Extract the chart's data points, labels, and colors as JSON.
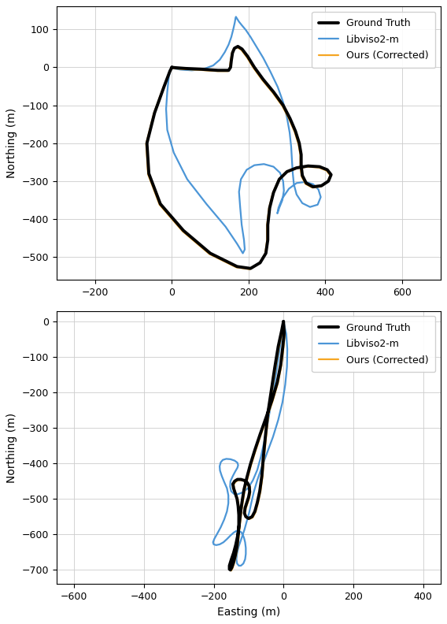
{
  "plot1": {
    "ylabel": "Northing (m)",
    "xlabel": "",
    "xlim": [
      -300,
      700
    ],
    "ylim": [
      -560,
      160
    ],
    "xticks": [
      -200,
      0,
      200,
      400,
      600
    ],
    "yticks": [
      -500,
      -400,
      -300,
      -200,
      -100,
      0,
      100
    ],
    "gt_color": "#000000",
    "libviso_color": "#4c96d7",
    "ours_color": "#f5a623",
    "gt_lw": 2.8,
    "libviso_lw": 1.6,
    "ours_lw": 1.6
  },
  "plot2": {
    "ylabel": "Northing (m)",
    "xlabel": "Easting (m)",
    "xlim": [
      -650,
      450
    ],
    "ylim": [
      -740,
      30
    ],
    "xticks": [
      -600,
      -400,
      -200,
      0,
      200,
      400
    ],
    "yticks": [
      -700,
      -600,
      -500,
      -400,
      -300,
      -200,
      -100,
      0
    ],
    "gt_color": "#000000",
    "libviso_color": "#4c96d7",
    "ours_color": "#f5a623",
    "gt_lw": 2.8,
    "libviso_lw": 1.6,
    "ours_lw": 1.6
  },
  "legend_labels": [
    "Ground Truth",
    "Libviso2-m",
    "Ours (Corrected)"
  ],
  "background_color": "#ffffff",
  "grid_color": "#cccccc"
}
